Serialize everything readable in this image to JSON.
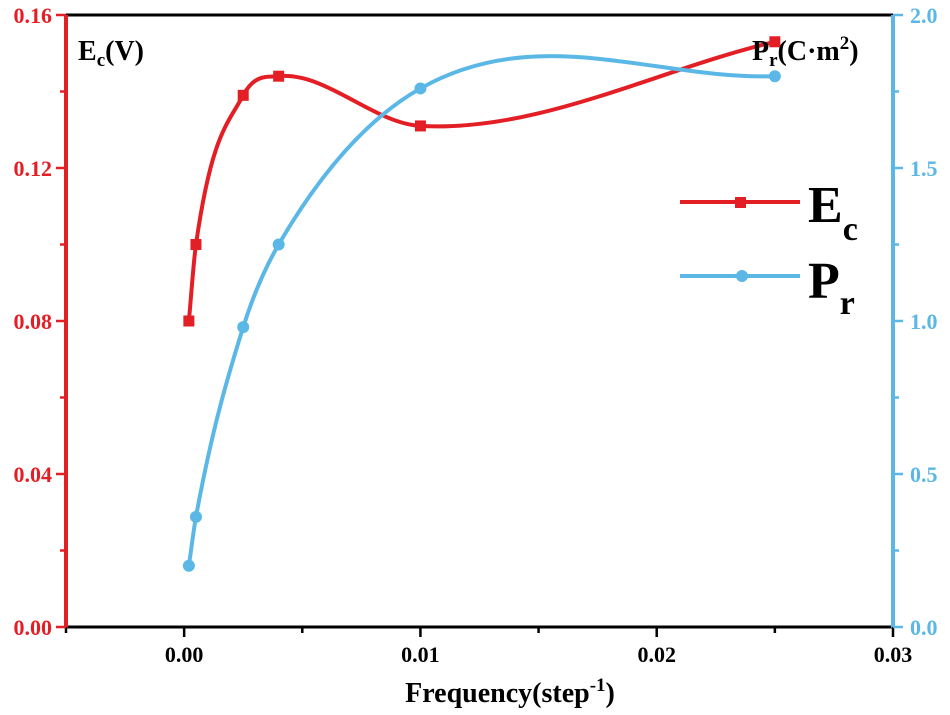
{
  "chart_data": {
    "type": "line",
    "xlabel": {
      "main": "Frequency(step",
      "sup": "-1",
      "close": ")"
    },
    "xlim": [
      -0.005,
      0.03
    ],
    "xticks": [
      "0.00",
      "0.01",
      "0.02",
      "0.03"
    ],
    "xtick_values": [
      0,
      0.01,
      0.02,
      0.03
    ],
    "left_axis": {
      "label": {
        "main": "E",
        "sub": "c",
        "rest": "(V)"
      },
      "ylim": [
        0,
        0.16
      ],
      "ticks": [
        "0.00",
        "0.04",
        "0.08",
        "0.12",
        "0.16"
      ],
      "tick_values": [
        0,
        0.04,
        0.08,
        0.12,
        0.16
      ],
      "color": "#e31e24"
    },
    "right_axis": {
      "label": {
        "main": "P",
        "sub": "r",
        "rest": "(C·m",
        "sup": "2",
        "close": ")"
      },
      "ylim": [
        0,
        2.0
      ],
      "ticks": [
        "0.0",
        "0.5",
        "1.0",
        "1.5",
        "2.0"
      ],
      "tick_values": [
        0,
        0.5,
        1.0,
        1.5,
        2.0
      ],
      "color": "#5bb8e6"
    },
    "series": [
      {
        "name": "E_c",
        "legend_main": "E",
        "legend_sub": "c",
        "axis": "left",
        "marker": "square",
        "color": "#e31e24",
        "x": [
          0.0002,
          0.0005,
          0.0025,
          0.004,
          0.01,
          0.025
        ],
        "values": [
          0.08,
          0.1,
          0.139,
          0.144,
          0.131,
          0.153
        ]
      },
      {
        "name": "P_r",
        "legend_main": "P",
        "legend_sub": "r",
        "axis": "right",
        "marker": "circle",
        "color": "#5bb8e6",
        "x": [
          0.0002,
          0.0005,
          0.0025,
          0.004,
          0.01,
          0.025
        ],
        "values": [
          0.2,
          0.36,
          0.98,
          1.25,
          1.76,
          1.8
        ]
      }
    ],
    "legend_position": "right-center",
    "grid": false
  }
}
